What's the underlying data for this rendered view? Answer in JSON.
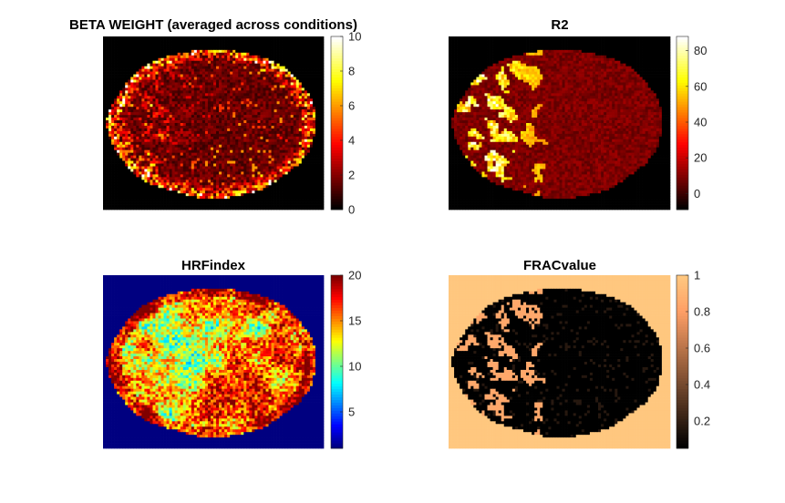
{
  "chart_data": [
    {
      "type": "heatmap",
      "title": "BETA WEIGHT (averaged across conditions)",
      "colormap": "hot",
      "colorbar": {
        "ticks": [
          0,
          2,
          4,
          6,
          8,
          10
        ],
        "range": [
          0,
          10
        ]
      },
      "pattern": "beta"
    },
    {
      "type": "heatmap",
      "title": "R2",
      "colormap": "hot",
      "colorbar": {
        "ticks": [
          0,
          20,
          40,
          60,
          80
        ],
        "range": [
          -9,
          88
        ]
      },
      "pattern": "r2"
    },
    {
      "type": "heatmap",
      "title": "HRFindex",
      "colormap": "jet",
      "colorbar": {
        "ticks": [
          5,
          10,
          15,
          20
        ],
        "range": [
          1,
          20
        ]
      },
      "pattern": "hrf"
    },
    {
      "type": "heatmap",
      "title": "FRACvalue",
      "colormap": "copper",
      "colorbar": {
        "ticks": [
          0.2,
          0.4,
          0.6,
          0.8,
          1
        ],
        "range": [
          0.05,
          1
        ]
      },
      "pattern": "frac"
    }
  ]
}
